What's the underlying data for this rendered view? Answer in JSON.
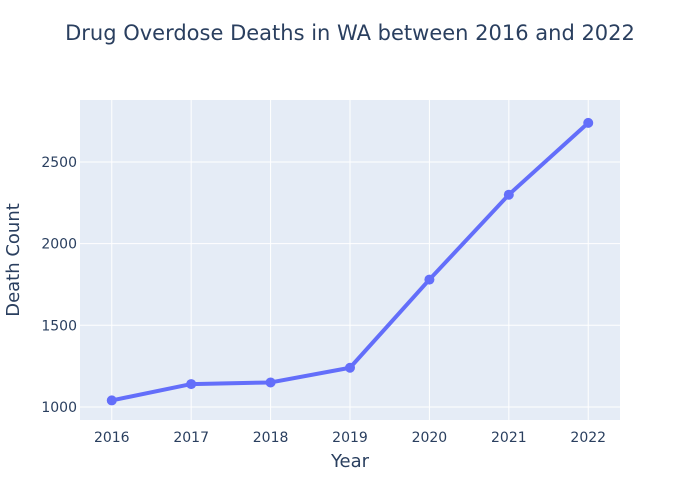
{
  "chart_data": {
    "type": "line",
    "title": "Drug Overdose Deaths in WA between 2016 and 2022",
    "xlabel": "Year",
    "ylabel": "Death Count",
    "x": [
      2016,
      2017,
      2018,
      2019,
      2020,
      2021,
      2022
    ],
    "x_tick_labels": [
      "2016",
      "2017",
      "2018",
      "2019",
      "2020",
      "2021",
      "2022"
    ],
    "y_ticks": [
      1000,
      1500,
      2000,
      2500
    ],
    "y_tick_labels": [
      "1000",
      "1500",
      "2000",
      "2500"
    ],
    "ylim": [
      920,
      2880
    ],
    "xlim": [
      2015.6,
      2022.4
    ],
    "series": [
      {
        "values": [
          1040,
          1140,
          1150,
          1240,
          1780,
          2300,
          2740
        ]
      }
    ],
    "grid": true,
    "legend": "none",
    "colors": {
      "line": "#636efa",
      "plot_background": "#e5ecf6",
      "grid": "#ffffff",
      "text": "#2a3f5f"
    }
  }
}
